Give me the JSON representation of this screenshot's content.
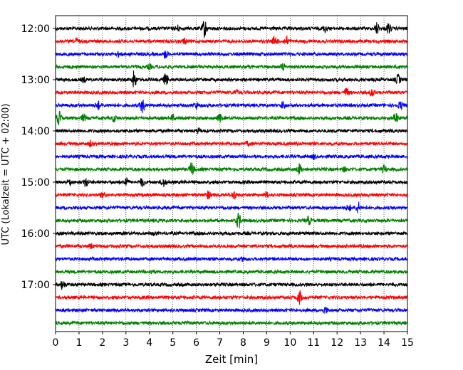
{
  "chart_data": {
    "type": "line",
    "title": "",
    "xlabel": "Zeit  [min]",
    "ylabel": "UTC (Lokalzeit = UTC + 02:00)",
    "xlim": [
      0,
      15
    ],
    "x_ticks": [
      0,
      1,
      2,
      3,
      4,
      5,
      6,
      7,
      8,
      9,
      10,
      11,
      12,
      13,
      14,
      15
    ],
    "x_tick_labels": [
      "0",
      "1",
      "2",
      "3",
      "4",
      "5",
      "6",
      "7",
      "8",
      "9",
      "10",
      "11",
      "12",
      "13",
      "14",
      "15"
    ],
    "y_ticks": [
      {
        "label": "12:00",
        "row": 0
      },
      {
        "label": "13:00",
        "row": 4
      },
      {
        "label": "14:00",
        "row": 8
      },
      {
        "label": "15:00",
        "row": 12
      },
      {
        "label": "16:00",
        "row": 16
      },
      {
        "label": "17:00",
        "row": 20
      }
    ],
    "grid": {
      "x": true,
      "y": false,
      "style": "dotted"
    },
    "row_minutes": 15,
    "colors": [
      "#000000",
      "#ff0000",
      "#0000ff",
      "#008000"
    ],
    "series": [
      {
        "start": "12:00",
        "color": "#000000",
        "events": [
          {
            "t": 6.35,
            "a": 1.7
          },
          {
            "t": 13.7,
            "a": 1.1
          },
          {
            "t": 14.2,
            "a": 1.0
          },
          {
            "t": 11.5,
            "a": 0.6
          },
          {
            "t": 5.2,
            "a": 0.5
          }
        ]
      },
      {
        "start": "12:15",
        "color": "#ff0000",
        "events": [
          {
            "t": 9.35,
            "a": 1.0
          },
          {
            "t": 9.85,
            "a": 0.9
          },
          {
            "t": 0.9,
            "a": 0.5
          },
          {
            "t": 5.5,
            "a": 0.5
          }
        ]
      },
      {
        "start": "12:30",
        "color": "#0000ff",
        "events": [
          {
            "t": 4.7,
            "a": 0.8
          },
          {
            "t": 2.7,
            "a": 0.4
          }
        ]
      },
      {
        "start": "12:45",
        "color": "#008000",
        "events": [
          {
            "t": 9.7,
            "a": 0.6
          },
          {
            "t": 4.0,
            "a": 0.4
          }
        ]
      },
      {
        "start": "13:00",
        "color": "#000000",
        "events": [
          {
            "t": 3.35,
            "a": 1.7
          },
          {
            "t": 4.7,
            "a": 1.2
          },
          {
            "t": 14.6,
            "a": 0.9
          },
          {
            "t": 1.2,
            "a": 0.4
          }
        ]
      },
      {
        "start": "13:15",
        "color": "#ff0000",
        "events": [
          {
            "t": 12.4,
            "a": 0.8
          },
          {
            "t": 13.5,
            "a": 0.8
          },
          {
            "t": 7.7,
            "a": 0.5
          }
        ]
      },
      {
        "start": "13:30",
        "color": "#0000ff",
        "events": [
          {
            "t": 3.7,
            "a": 1.3
          },
          {
            "t": 1.8,
            "a": 0.8
          },
          {
            "t": 9.7,
            "a": 0.7
          },
          {
            "t": 14.7,
            "a": 0.7
          },
          {
            "t": 6.0,
            "a": 0.6
          }
        ]
      },
      {
        "start": "13:45",
        "color": "#008000",
        "events": [
          {
            "t": 0.15,
            "a": 1.3
          },
          {
            "t": 14.5,
            "a": 1.1
          },
          {
            "t": 1.2,
            "a": 0.7
          },
          {
            "t": 7.0,
            "a": 0.7
          },
          {
            "t": 2.5,
            "a": 0.6
          },
          {
            "t": 5.0,
            "a": 0.5
          }
        ]
      },
      {
        "start": "14:00",
        "color": "#000000",
        "events": [
          {
            "t": 6.1,
            "a": 0.4
          }
        ]
      },
      {
        "start": "14:15",
        "color": "#ff0000",
        "events": [
          {
            "t": 1.5,
            "a": 0.5
          },
          {
            "t": 8.2,
            "a": 0.4
          }
        ]
      },
      {
        "start": "14:30",
        "color": "#0000ff",
        "events": [
          {
            "t": 11.0,
            "a": 0.4
          }
        ]
      },
      {
        "start": "14:45",
        "color": "#008000",
        "events": [
          {
            "t": 5.8,
            "a": 1.3
          },
          {
            "t": 10.4,
            "a": 1.0
          },
          {
            "t": 14.0,
            "a": 0.7
          },
          {
            "t": 12.3,
            "a": 0.4
          }
        ]
      },
      {
        "start": "15:00",
        "color": "#000000",
        "events": [
          {
            "t": 1.3,
            "a": 0.9
          },
          {
            "t": 3.0,
            "a": 0.9
          },
          {
            "t": 3.7,
            "a": 0.8
          },
          {
            "t": 4.6,
            "a": 0.8
          },
          {
            "t": 0.6,
            "a": 0.6
          }
        ]
      },
      {
        "start": "15:15",
        "color": "#ff0000",
        "events": [
          {
            "t": 6.5,
            "a": 0.7
          },
          {
            "t": 7.6,
            "a": 0.8
          },
          {
            "t": 9.0,
            "a": 0.5
          },
          {
            "t": 2.0,
            "a": 0.4
          }
        ]
      },
      {
        "start": "15:30",
        "color": "#0000ff",
        "events": [
          {
            "t": 12.9,
            "a": 1.0
          },
          {
            "t": 12.5,
            "a": 0.6
          }
        ]
      },
      {
        "start": "15:45",
        "color": "#008000",
        "events": [
          {
            "t": 7.8,
            "a": 1.5
          },
          {
            "t": 10.8,
            "a": 0.8
          }
        ]
      },
      {
        "start": "16:00",
        "color": "#000000",
        "events": [
          {
            "t": 4.2,
            "a": 0.3
          }
        ]
      },
      {
        "start": "16:15",
        "color": "#ff0000",
        "events": [
          {
            "t": 1.5,
            "a": 0.4
          }
        ]
      },
      {
        "start": "16:30",
        "color": "#0000ff",
        "events": [
          {
            "t": 8.0,
            "a": 0.3
          }
        ]
      },
      {
        "start": "16:45",
        "color": "#008000",
        "events": [
          {
            "t": 4.1,
            "a": 0.3
          }
        ]
      },
      {
        "start": "17:00",
        "color": "#000000",
        "events": [
          {
            "t": 0.3,
            "a": 0.9
          }
        ]
      },
      {
        "start": "17:15",
        "color": "#ff0000",
        "events": [
          {
            "t": 10.4,
            "a": 1.3
          }
        ]
      },
      {
        "start": "17:30",
        "color": "#0000ff",
        "events": [
          {
            "t": 11.5,
            "a": 0.6
          }
        ]
      },
      {
        "start": "17:45",
        "color": "#008000",
        "events": [
          {
            "t": 5.5,
            "a": 0.3
          }
        ]
      }
    ]
  }
}
